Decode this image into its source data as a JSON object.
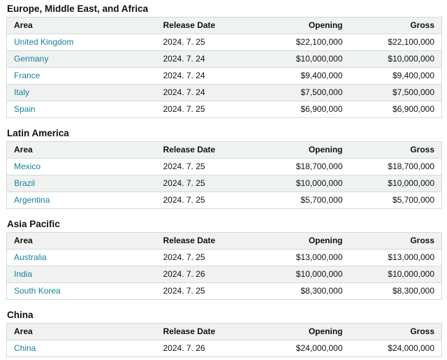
{
  "colors": {
    "text": "#0f1111",
    "link": "#17809c",
    "border": "#d5d9d9",
    "header_background": "#f0f1f1",
    "stripe_background": "#f0f1f1",
    "page_background": "#ffffff"
  },
  "columns": [
    "Area",
    "Release Date",
    "Opening",
    "Gross"
  ],
  "sections": [
    {
      "title": "Europe, Middle East, and Africa",
      "rows": [
        {
          "area": "United Kingdom",
          "release_date": "2024. 7. 25",
          "opening": "$22,100,000",
          "gross": "$22,100,000"
        },
        {
          "area": "Germany",
          "release_date": "2024. 7. 24",
          "opening": "$10,000,000",
          "gross": "$10,000,000"
        },
        {
          "area": "France",
          "release_date": "2024. 7. 24",
          "opening": "$9,400,000",
          "gross": "$9,400,000"
        },
        {
          "area": "Italy",
          "release_date": "2024. 7. 24",
          "opening": "$7,500,000",
          "gross": "$7,500,000"
        },
        {
          "area": "Spain",
          "release_date": "2024. 7. 25",
          "opening": "$6,900,000",
          "gross": "$6,900,000"
        }
      ]
    },
    {
      "title": "Latin America",
      "rows": [
        {
          "area": "Mexico",
          "release_date": "2024. 7. 25",
          "opening": "$18,700,000",
          "gross": "$18,700,000"
        },
        {
          "area": "Brazil",
          "release_date": "2024. 7. 25",
          "opening": "$10,000,000",
          "gross": "$10,000,000"
        },
        {
          "area": "Argentina",
          "release_date": "2024. 7. 25",
          "opening": "$5,700,000",
          "gross": "$5,700,000"
        }
      ]
    },
    {
      "title": "Asia Pacific",
      "rows": [
        {
          "area": "Australia",
          "release_date": "2024. 7. 25",
          "opening": "$13,000,000",
          "gross": "$13,000,000"
        },
        {
          "area": "India",
          "release_date": "2024. 7. 26",
          "opening": "$10,000,000",
          "gross": "$10,000,000"
        },
        {
          "area": "South Korea",
          "release_date": "2024. 7. 25",
          "opening": "$8,300,000",
          "gross": "$8,300,000"
        }
      ]
    },
    {
      "title": "China",
      "rows": [
        {
          "area": "China",
          "release_date": "2024. 7. 26",
          "opening": "$24,000,000",
          "gross": "$24,000,000"
        }
      ]
    }
  ]
}
